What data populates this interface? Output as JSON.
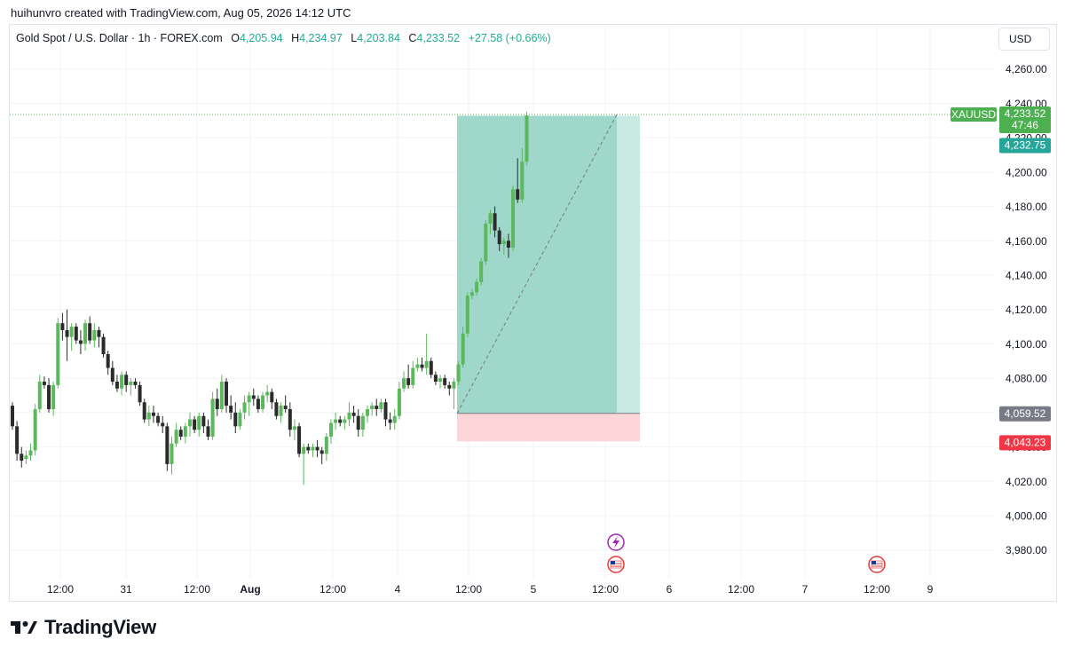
{
  "header": {
    "caption": "huihunvro created with TradingView.com, Aug 05, 2026 14:12 UTC"
  },
  "legend": {
    "symbol": "Gold Spot / U.S. Dollar · 1h · FOREX.com",
    "o_label": "O",
    "o_value": "4,205.94",
    "h_label": "H",
    "h_value": "4,234.97",
    "l_label": "L",
    "l_value": "4,203.84",
    "c_label": "C",
    "c_value": "4,233.52",
    "change": "+27.58 (+0.66%)"
  },
  "currency_button": {
    "label": "USD"
  },
  "footer": {
    "brand": "TradingView"
  },
  "colors": {
    "up": "#5cb85c",
    "down": "#2b2b2b",
    "profit_zone": "#9fd8cb",
    "profit_zone_light": "#c9eae2",
    "loss_zone": "#fbd5d8",
    "last_price_tag": "#4caf50",
    "target_tag": "#26a69a",
    "entry_tag": "#787b86",
    "stop_tag": "#f23645"
  },
  "chart_data": {
    "type": "candlestick",
    "symbol_tag": "XAUUSD",
    "y_axis": {
      "ticks": [
        "3,980.00",
        "4,000.00",
        "4,020.00",
        "4,040.00",
        "4,060.00",
        "4,080.00",
        "4,100.00",
        "4,120.00",
        "4,140.00",
        "4,160.00",
        "4,180.00",
        "4,200.00",
        "4,220.00",
        "4,240.00",
        "4,260.00"
      ],
      "range": [
        3970,
        4275
      ]
    },
    "x_axis": {
      "ticks": [
        "12:00",
        "31",
        "12:00",
        "Aug",
        "12:00",
        "4",
        "12:00",
        "5",
        "12:00",
        "6",
        "12:00",
        "7",
        "12:00",
        "9"
      ]
    },
    "last_price": "4,233.52",
    "countdown": "47:46",
    "position": {
      "type": "long",
      "target": "4,232.75",
      "entry": "4,059.52",
      "stop": "4,043.23"
    },
    "candles": [
      [
        4064,
        4066,
        4050,
        4052
      ],
      [
        4052,
        4055,
        4032,
        4036
      ],
      [
        4036,
        4040,
        4028,
        4032
      ],
      [
        4033,
        4038,
        4030,
        4035
      ],
      [
        4035,
        4042,
        4032,
        4038
      ],
      [
        4038,
        4065,
        4035,
        4062
      ],
      [
        4062,
        4082,
        4060,
        4078
      ],
      [
        4078,
        4081,
        4074,
        4076
      ],
      [
        4076,
        4080,
        4060,
        4062
      ],
      [
        4062,
        4078,
        4058,
        4076
      ],
      [
        4076,
        4115,
        4074,
        4112
      ],
      [
        4112,
        4118,
        4102,
        4108
      ],
      [
        4108,
        4120,
        4090,
        4104
      ],
      [
        4104,
        4112,
        4096,
        4110
      ],
      [
        4110,
        4112,
        4100,
        4102
      ],
      [
        4102,
        4108,
        4094,
        4100
      ],
      [
        4100,
        4114,
        4096,
        4112
      ],
      [
        4112,
        4116,
        4100,
        4102
      ],
      [
        4102,
        4112,
        4098,
        4108
      ],
      [
        4108,
        4110,
        4098,
        4104
      ],
      [
        4104,
        4106,
        4092,
        4094
      ],
      [
        4094,
        4096,
        4082,
        4086
      ],
      [
        4086,
        4090,
        4076,
        4078
      ],
      [
        4078,
        4082,
        4072,
        4074
      ],
      [
        4074,
        4084,
        4070,
        4082
      ],
      [
        4082,
        4084,
        4072,
        4076
      ],
      [
        4076,
        4080,
        4070,
        4078
      ],
      [
        4078,
        4080,
        4074,
        4076
      ],
      [
        4076,
        4078,
        4064,
        4066
      ],
      [
        4066,
        4068,
        4054,
        4056
      ],
      [
        4056,
        4064,
        4052,
        4060
      ],
      [
        4060,
        4064,
        4054,
        4058
      ],
      [
        4058,
        4060,
        4052,
        4054
      ],
      [
        4054,
        4058,
        4048,
        4052
      ],
      [
        4052,
        4054,
        4026,
        4030
      ],
      [
        4030,
        4046,
        4024,
        4042
      ],
      [
        4042,
        4054,
        4040,
        4050
      ],
      [
        4050,
        4052,
        4044,
        4046
      ],
      [
        4046,
        4054,
        4042,
        4052
      ],
      [
        4052,
        4060,
        4046,
        4056
      ],
      [
        4056,
        4058,
        4048,
        4050
      ],
      [
        4050,
        4060,
        4046,
        4058
      ],
      [
        4058,
        4060,
        4048,
        4052
      ],
      [
        4052,
        4056,
        4044,
        4046
      ],
      [
        4046,
        4072,
        4044,
        4068
      ],
      [
        4068,
        4074,
        4058,
        4062
      ],
      [
        4062,
        4082,
        4060,
        4078
      ],
      [
        4078,
        4080,
        4060,
        4064
      ],
      [
        4064,
        4070,
        4056,
        4060
      ],
      [
        4060,
        4066,
        4048,
        4052
      ],
      [
        4052,
        4062,
        4050,
        4060
      ],
      [
        4060,
        4070,
        4056,
        4066
      ],
      [
        4066,
        4072,
        4058,
        4070
      ],
      [
        4070,
        4074,
        4064,
        4068
      ],
      [
        4068,
        4070,
        4060,
        4062
      ],
      [
        4062,
        4072,
        4060,
        4070
      ],
      [
        4070,
        4076,
        4066,
        4072
      ],
      [
        4072,
        4074,
        4062,
        4066
      ],
      [
        4066,
        4068,
        4056,
        4058
      ],
      [
        4058,
        4066,
        4054,
        4064
      ],
      [
        4064,
        4070,
        4060,
        4062
      ],
      [
        4062,
        4066,
        4046,
        4050
      ],
      [
        4050,
        4056,
        4044,
        4052
      ],
      [
        4052,
        4054,
        4034,
        4036
      ],
      [
        4036,
        4042,
        4018,
        4040
      ],
      [
        4040,
        4042,
        4036,
        4038
      ],
      [
        4038,
        4042,
        4034,
        4040
      ],
      [
        4040,
        4044,
        4034,
        4038
      ],
      [
        4038,
        4040,
        4030,
        4036
      ],
      [
        4036,
        4048,
        4032,
        4046
      ],
      [
        4046,
        4056,
        4042,
        4054
      ],
      [
        4054,
        4060,
        4050,
        4056
      ],
      [
        4056,
        4058,
        4052,
        4054
      ],
      [
        4054,
        4058,
        4050,
        4056
      ],
      [
        4056,
        4066,
        4052,
        4060
      ],
      [
        4060,
        4064,
        4054,
        4058
      ],
      [
        4058,
        4062,
        4046,
        4050
      ],
      [
        4050,
        4060,
        4046,
        4058
      ],
      [
        4058,
        4064,
        4054,
        4062
      ],
      [
        4062,
        4066,
        4058,
        4064
      ],
      [
        4064,
        4068,
        4058,
        4062
      ],
      [
        4062,
        4068,
        4060,
        4066
      ],
      [
        4066,
        4068,
        4052,
        4056
      ],
      [
        4056,
        4060,
        4050,
        4054
      ],
      [
        4054,
        4062,
        4050,
        4058
      ],
      [
        4058,
        4078,
        4056,
        4074
      ],
      [
        4074,
        4084,
        4072,
        4080
      ],
      [
        4080,
        4088,
        4074,
        4076
      ],
      [
        4076,
        4090,
        4074,
        4086
      ],
      [
        4086,
        4092,
        4084,
        4088
      ],
      [
        4088,
        4092,
        4084,
        4086
      ],
      [
        4086,
        4106,
        4082,
        4090
      ],
      [
        4090,
        4092,
        4080,
        4082
      ],
      [
        4082,
        4084,
        4076,
        4078
      ],
      [
        4078,
        4082,
        4074,
        4080
      ],
      [
        4080,
        4082,
        4074,
        4076
      ],
      [
        4076,
        4078,
        4070,
        4074
      ],
      [
        4074,
        4080,
        4062,
        4078
      ],
      [
        4078,
        4090,
        4076,
        4088
      ],
      [
        4088,
        4110,
        4086,
        4106
      ],
      [
        4106,
        4130,
        4104,
        4128
      ],
      [
        4128,
        4132,
        4126,
        4130
      ],
      [
        4130,
        4138,
        4128,
        4136
      ],
      [
        4136,
        4150,
        4134,
        4148
      ],
      [
        4148,
        4172,
        4146,
        4170
      ],
      [
        4170,
        4178,
        4164,
        4176
      ],
      [
        4176,
        4180,
        4162,
        4166
      ],
      [
        4166,
        4168,
        4154,
        4158
      ],
      [
        4158,
        4162,
        4152,
        4160
      ],
      [
        4160,
        4164,
        4150,
        4156
      ],
      [
        4156,
        4192,
        4154,
        4190
      ],
      [
        4190,
        4208,
        4182,
        4184
      ],
      [
        4184,
        4214,
        4182,
        4206
      ],
      [
        4206,
        4235,
        4204,
        4233
      ]
    ]
  }
}
